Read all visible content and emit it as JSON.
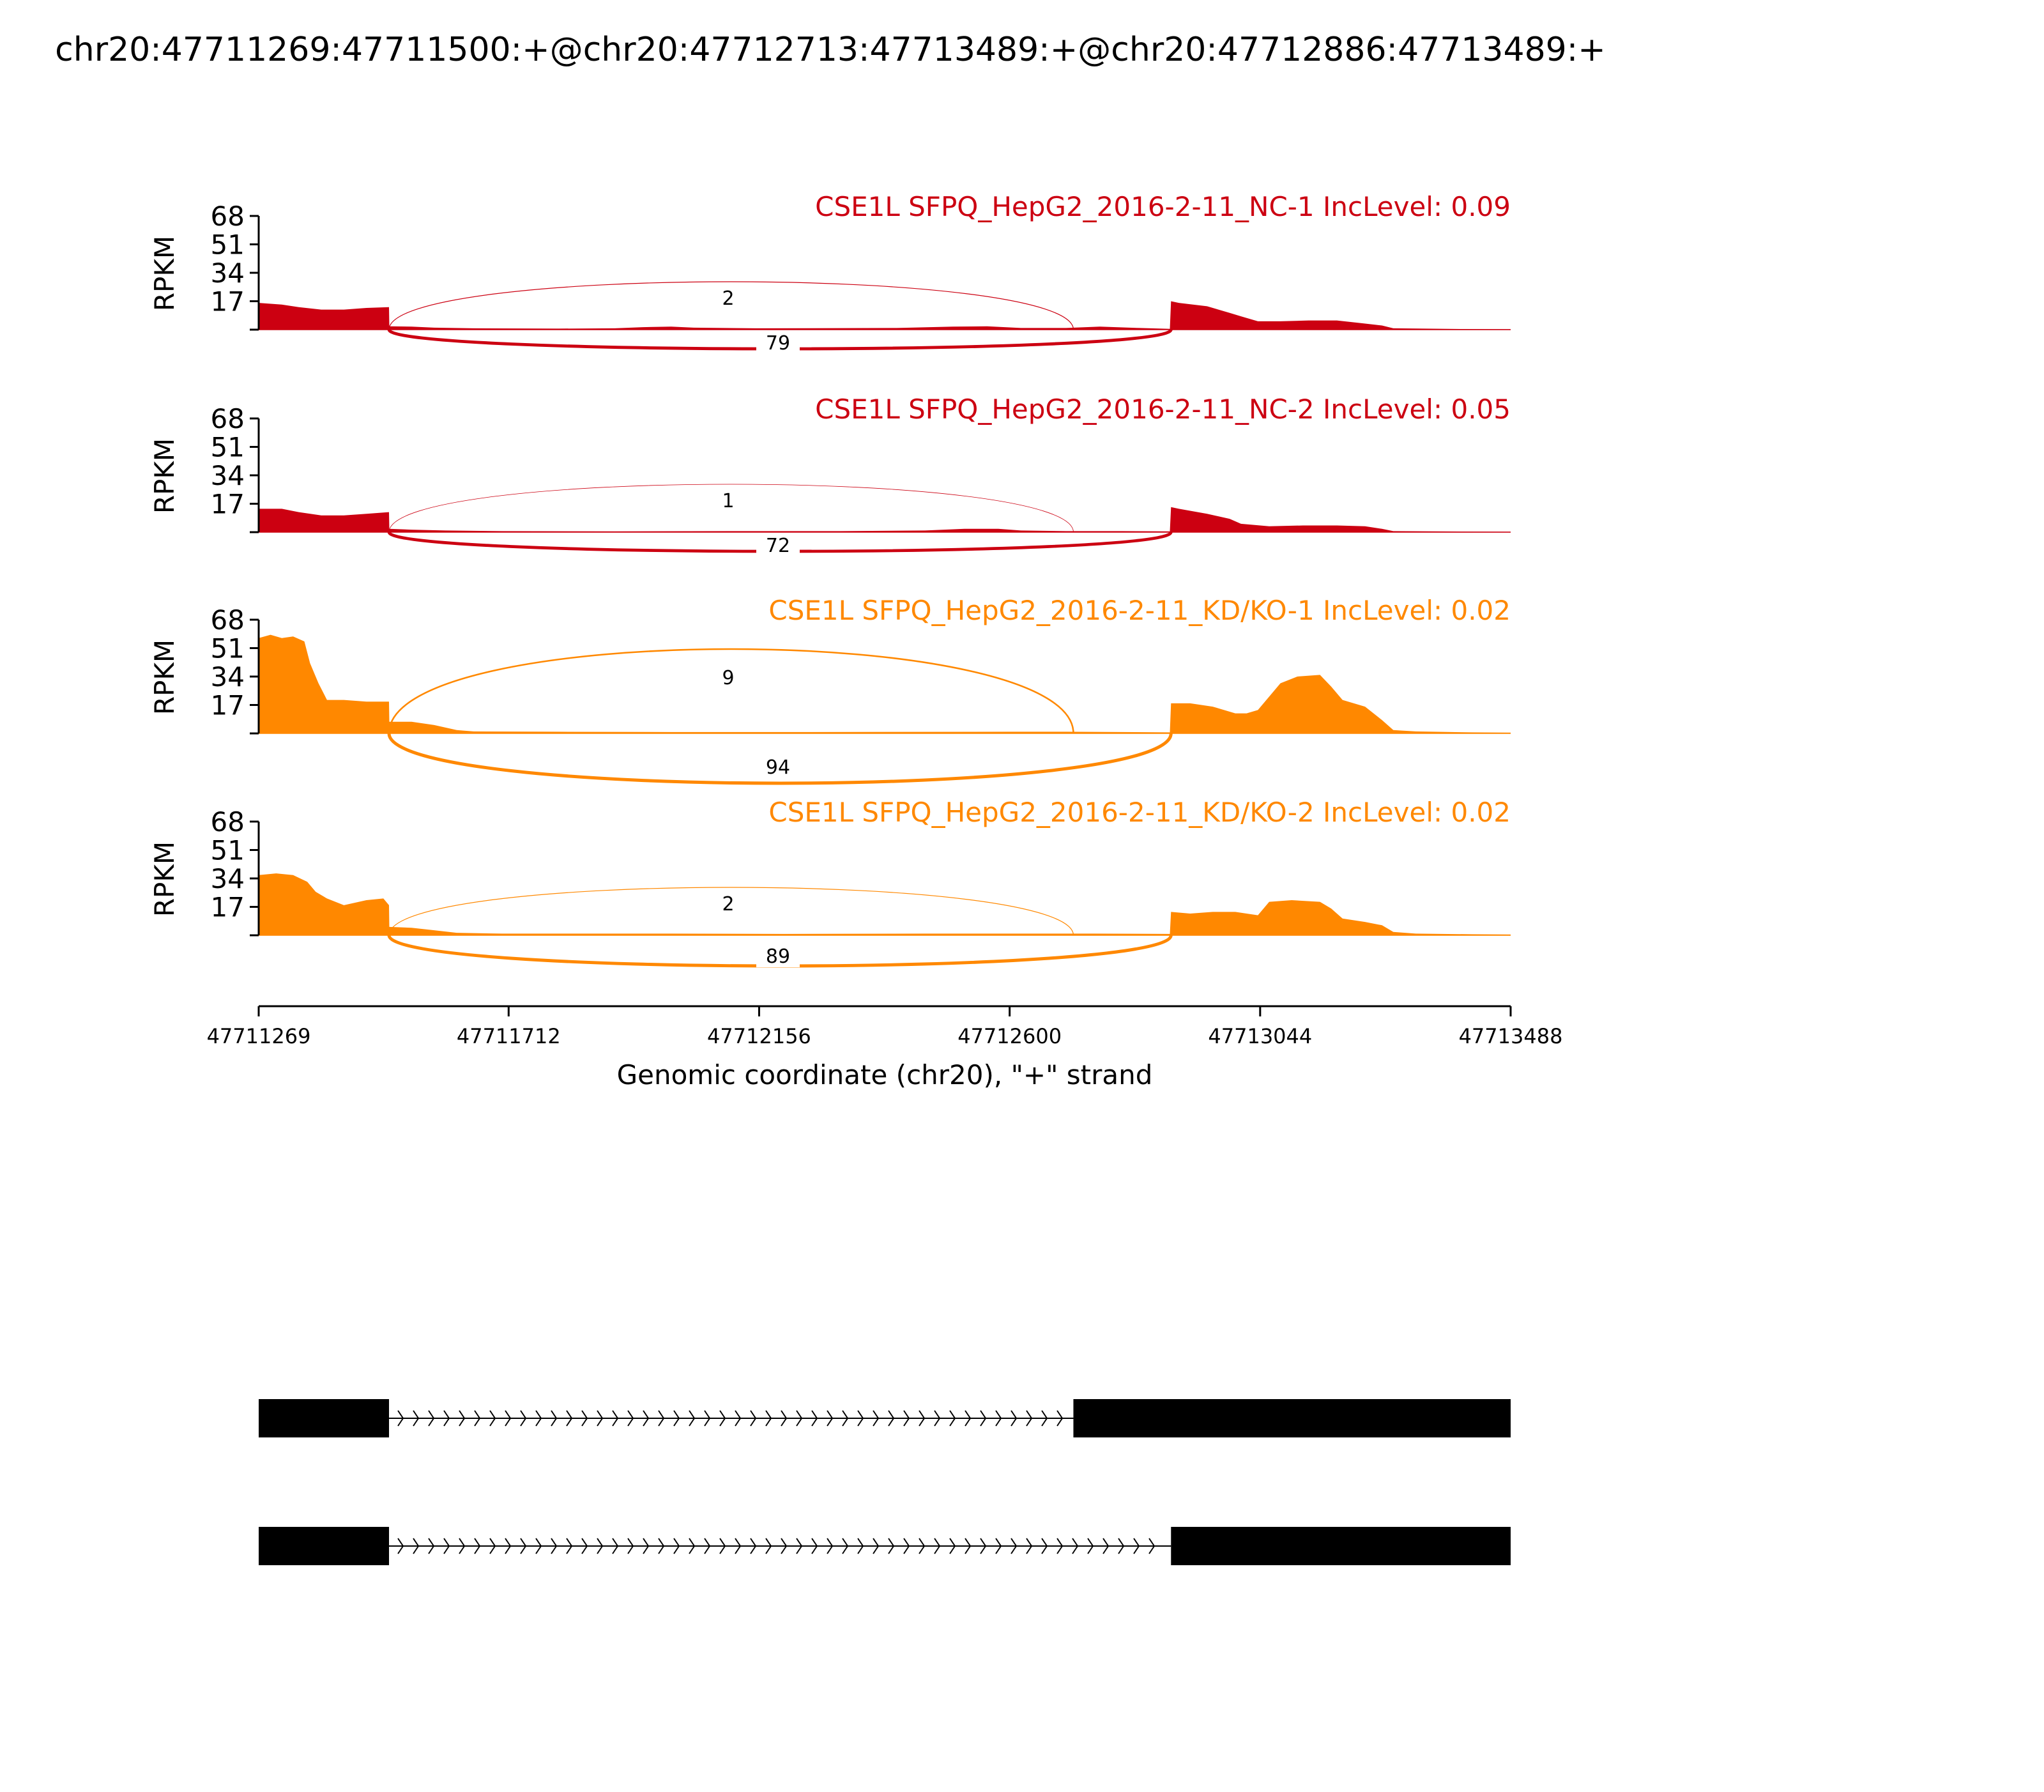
{
  "chart_data": {
    "type": "area",
    "title": "chr20:47711269:47711500:+@chr20:47712713:47713489:+@chr20:47712886:47713489:+",
    "ylabel": "RPKM",
    "xlabel": "Genomic coordinate (chr20), \"+\" strand",
    "xlim": [
      47711269,
      47713488
    ],
    "ylim": [
      0,
      68
    ],
    "yticks": [
      "68",
      "51",
      "34",
      "17"
    ],
    "xticks": [
      {
        "value": 47711269,
        "label": "47711269"
      },
      {
        "value": 47711712,
        "label": "47711712"
      },
      {
        "value": 47712156,
        "label": "47712156"
      },
      {
        "value": 47712600,
        "label": "47712600"
      },
      {
        "value": 47713044,
        "label": "47713044"
      },
      {
        "value": 47713488,
        "label": "47713488"
      }
    ],
    "series": [
      {
        "name": "CSE1L SFPQ_HepG2_2016-2-11_NC-1 IncLevel: 0.09",
        "color": "#cc0011",
        "coverage": [
          [
            47711269,
            16
          ],
          [
            47711310,
            15
          ],
          [
            47711340,
            13.5
          ],
          [
            47711380,
            12
          ],
          [
            47711420,
            12
          ],
          [
            47711460,
            13
          ],
          [
            47711500,
            13.5
          ],
          [
            47711500.5,
            2
          ],
          [
            47711540,
            1.8
          ],
          [
            47711580,
            1.2
          ],
          [
            47711650,
            0.8
          ],
          [
            47711800,
            0.6
          ],
          [
            47711900,
            0.8
          ],
          [
            47711950,
            1.5
          ],
          [
            47712000,
            1.8
          ],
          [
            47712040,
            1.2
          ],
          [
            47712150,
            0.8
          ],
          [
            47712400,
            1
          ],
          [
            47712500,
            1.8
          ],
          [
            47712560,
            2
          ],
          [
            47712620,
            1
          ],
          [
            47712700,
            1
          ],
          [
            47712760,
            1.8
          ],
          [
            47712830,
            1
          ],
          [
            47712884,
            0.5
          ],
          [
            47712886,
            17
          ],
          [
            47712900,
            16
          ],
          [
            47712950,
            14
          ],
          [
            47712990,
            10
          ],
          [
            47713010,
            8
          ],
          [
            47713040,
            5
          ],
          [
            47713080,
            5
          ],
          [
            47713130,
            5.5
          ],
          [
            47713180,
            5.5
          ],
          [
            47713220,
            4
          ],
          [
            47713260,
            2.5
          ],
          [
            47713280,
            0.8
          ],
          [
            47713400,
            0.4
          ],
          [
            47713488,
            0.3
          ]
        ],
        "junctions": [
          {
            "start": 47711500,
            "end": 47712713,
            "count": "2",
            "side": "above"
          },
          {
            "start": 47711500,
            "end": 47712886,
            "count": "79",
            "side": "below"
          }
        ]
      },
      {
        "name": "CSE1L SFPQ_HepG2_2016-2-11_NC-2 IncLevel: 0.05",
        "color": "#cc0011",
        "coverage": [
          [
            47711269,
            14
          ],
          [
            47711310,
            14
          ],
          [
            47711340,
            12
          ],
          [
            47711380,
            10
          ],
          [
            47711420,
            10
          ],
          [
            47711460,
            11
          ],
          [
            47711500,
            12
          ],
          [
            47711500.5,
            2
          ],
          [
            47711540,
            1.5
          ],
          [
            47711600,
            1
          ],
          [
            47711700,
            0.6
          ],
          [
            47711900,
            0.5
          ],
          [
            47712100,
            0.6
          ],
          [
            47712300,
            0.6
          ],
          [
            47712450,
            1
          ],
          [
            47712520,
            2
          ],
          [
            47712580,
            2
          ],
          [
            47712620,
            1
          ],
          [
            47712700,
            0.6
          ],
          [
            47712800,
            0.6
          ],
          [
            47712884,
            0.5
          ],
          [
            47712886,
            15
          ],
          [
            47712900,
            14
          ],
          [
            47712950,
            11
          ],
          [
            47712990,
            8
          ],
          [
            47713010,
            5
          ],
          [
            47713060,
            3.5
          ],
          [
            47713120,
            4
          ],
          [
            47713180,
            4
          ],
          [
            47713230,
            3.5
          ],
          [
            47713260,
            2
          ],
          [
            47713280,
            0.6
          ],
          [
            47713400,
            0.4
          ],
          [
            47713488,
            0.3
          ]
        ],
        "junctions": [
          {
            "start": 47711500,
            "end": 47712713,
            "count": "1",
            "side": "above"
          },
          {
            "start": 47711500,
            "end": 47712886,
            "count": "72",
            "side": "below"
          }
        ]
      },
      {
        "name": "CSE1L SFPQ_HepG2_2016-2-11_KD/KO-1 IncLevel: 0.02",
        "color": "#ff8800",
        "coverage": [
          [
            47711269,
            57
          ],
          [
            47711290,
            59
          ],
          [
            47711310,
            57
          ],
          [
            47711330,
            58
          ],
          [
            47711350,
            55
          ],
          [
            47711360,
            42
          ],
          [
            47711375,
            30
          ],
          [
            47711390,
            20
          ],
          [
            47711420,
            20
          ],
          [
            47711460,
            19
          ],
          [
            47711500,
            19
          ],
          [
            47711500.5,
            7
          ],
          [
            47711540,
            7
          ],
          [
            47711580,
            5
          ],
          [
            47711620,
            2
          ],
          [
            47711650,
            1.2
          ],
          [
            47711800,
            1
          ],
          [
            47712000,
            0.8
          ],
          [
            47712200,
            0.8
          ],
          [
            47712400,
            0.9
          ],
          [
            47712600,
            1
          ],
          [
            47712700,
            1
          ],
          [
            47712800,
            0.8
          ],
          [
            47712884,
            0.6
          ],
          [
            47712886,
            18
          ],
          [
            47712920,
            18
          ],
          [
            47712960,
            16
          ],
          [
            47713000,
            12
          ],
          [
            47713020,
            12
          ],
          [
            47713040,
            14
          ],
          [
            47713060,
            22
          ],
          [
            47713080,
            30
          ],
          [
            47713110,
            34
          ],
          [
            47713150,
            35
          ],
          [
            47713170,
            28
          ],
          [
            47713190,
            20
          ],
          [
            47713230,
            16
          ],
          [
            47713260,
            8
          ],
          [
            47713280,
            2
          ],
          [
            47713320,
            1.2
          ],
          [
            47713420,
            0.6
          ],
          [
            47713488,
            0.5
          ]
        ],
        "junctions": [
          {
            "start": 47711500,
            "end": 47712713,
            "count": "9",
            "side": "above"
          },
          {
            "start": 47711500,
            "end": 47712886,
            "count": "94",
            "side": "below"
          }
        ]
      },
      {
        "name": "CSE1L SFPQ_HepG2_2016-2-11_KD/KO-2 IncLevel: 0.02",
        "color": "#ff8800",
        "coverage": [
          [
            47711269,
            36
          ],
          [
            47711300,
            37
          ],
          [
            47711330,
            36
          ],
          [
            47711355,
            32
          ],
          [
            47711370,
            26
          ],
          [
            47711390,
            22
          ],
          [
            47711420,
            18
          ],
          [
            47711460,
            21
          ],
          [
            47711490,
            22
          ],
          [
            47711500,
            18
          ],
          [
            47711500.5,
            5
          ],
          [
            47711540,
            4.5
          ],
          [
            47711580,
            3
          ],
          [
            47711620,
            1.5
          ],
          [
            47711700,
            1
          ],
          [
            47712000,
            1
          ],
          [
            47712200,
            0.8
          ],
          [
            47712450,
            1
          ],
          [
            47712600,
            1
          ],
          [
            47712750,
            1
          ],
          [
            47712884,
            0.8
          ],
          [
            47712886,
            14
          ],
          [
            47712920,
            13
          ],
          [
            47712960,
            14
          ],
          [
            47713000,
            14
          ],
          [
            47713020,
            13
          ],
          [
            47713040,
            12
          ],
          [
            47713060,
            20
          ],
          [
            47713100,
            21
          ],
          [
            47713150,
            20
          ],
          [
            47713170,
            16
          ],
          [
            47713190,
            10
          ],
          [
            47713230,
            8
          ],
          [
            47713260,
            6
          ],
          [
            47713280,
            2
          ],
          [
            47713320,
            1
          ],
          [
            47713420,
            0.6
          ],
          [
            47713488,
            0.5
          ]
        ],
        "junctions": [
          {
            "start": 47711500,
            "end": 47712713,
            "count": "2",
            "side": "above"
          },
          {
            "start": 47711500,
            "end": 47712886,
            "count": "89",
            "side": "below"
          }
        ]
      }
    ],
    "transcripts": [
      {
        "exons": [
          [
            47711269,
            47711500
          ],
          [
            47712713,
            47713488
          ]
        ]
      },
      {
        "exons": [
          [
            47711269,
            47711500
          ],
          [
            47712886,
            47713488
          ]
        ]
      }
    ]
  }
}
